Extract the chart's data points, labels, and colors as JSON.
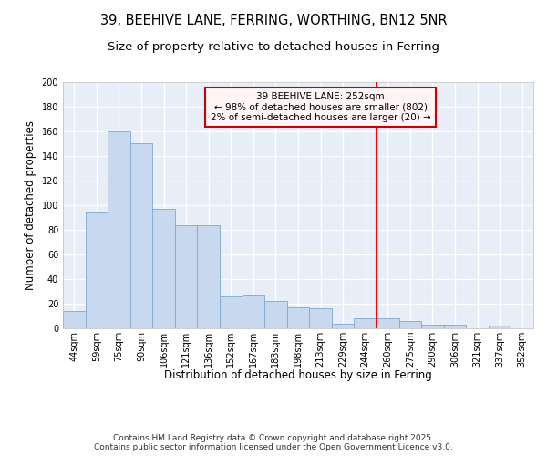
{
  "title_line1": "39, BEEHIVE LANE, FERRING, WORTHING, BN12 5NR",
  "title_line2": "Size of property relative to detached houses in Ferring",
  "xlabel": "Distribution of detached houses by size in Ferring",
  "ylabel": "Number of detached properties",
  "categories": [
    "44sqm",
    "59sqm",
    "75sqm",
    "90sqm",
    "106sqm",
    "121sqm",
    "136sqm",
    "152sqm",
    "167sqm",
    "183sqm",
    "198sqm",
    "213sqm",
    "229sqm",
    "244sqm",
    "260sqm",
    "275sqm",
    "290sqm",
    "306sqm",
    "321sqm",
    "337sqm",
    "352sqm"
  ],
  "values": [
    14,
    94,
    160,
    150,
    97,
    84,
    84,
    26,
    27,
    22,
    17,
    16,
    4,
    8,
    8,
    6,
    3,
    3,
    0,
    2,
    0
  ],
  "bar_color": "#c8d8ee",
  "bar_edge_color": "#7aaad0",
  "background_color": "#e8eef8",
  "grid_color": "#ffffff",
  "red_line_x": 13.5,
  "annotation_text": "39 BEEHIVE LANE: 252sqm\n← 98% of detached houses are smaller (802)\n2% of semi-detached houses are larger (20) →",
  "annotation_box_facecolor": "#fff5f5",
  "annotation_border_color": "#cc0000",
  "ylim": [
    0,
    200
  ],
  "yticks": [
    0,
    20,
    40,
    60,
    80,
    100,
    120,
    140,
    160,
    180,
    200
  ],
  "footer_text": "Contains HM Land Registry data © Crown copyright and database right 2025.\nContains public sector information licensed under the Open Government Licence v3.0.",
  "fig_bg_color": "#ffffff",
  "title_fontsize": 10.5,
  "subtitle_fontsize": 9.5,
  "axis_label_fontsize": 8.5,
  "tick_fontsize": 7,
  "footer_fontsize": 6.5,
  "annotation_fontsize": 7.5
}
